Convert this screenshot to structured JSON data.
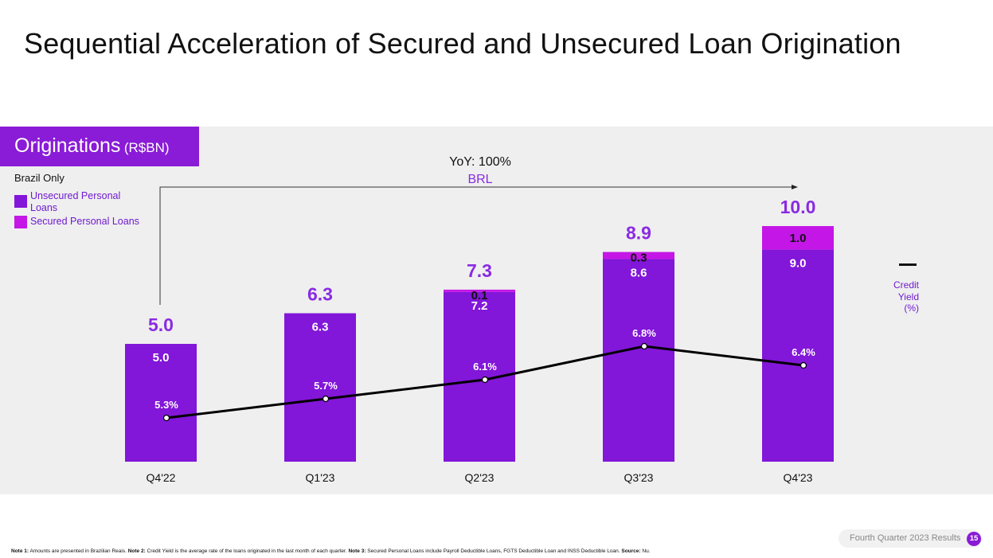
{
  "title": "Sequential Acceleration of Secured and Unsecured Loan Origination",
  "section": {
    "label": "Originations",
    "unit": "(R$BN)"
  },
  "legend": {
    "title": "Brazil Only",
    "items": [
      {
        "label": "Unsecured Personal Loans",
        "color": "#8216d9"
      },
      {
        "label": "Secured Personal Loans",
        "color": "#c416e6"
      }
    ]
  },
  "side_legend": {
    "lines": [
      "Credit",
      "Yield",
      "(%)"
    ]
  },
  "yoy": {
    "label": "YoY: 100%",
    "sub": "BRL"
  },
  "colors": {
    "unsecured": "#8216d9",
    "secured": "#c416e6",
    "total_label": "#8a2be2",
    "panel": "#efefef",
    "accent": "#8a1bd6"
  },
  "chart_data": {
    "type": "bar",
    "stacked": true,
    "categories": [
      "Q4'22",
      "Q1'23",
      "Q2'23",
      "Q3'23",
      "Q4'23"
    ],
    "series": [
      {
        "name": "Unsecured Personal Loans",
        "values": [
          5.0,
          6.3,
          7.2,
          8.6,
          9.0
        ],
        "labels": [
          "5.0",
          "6.3",
          "7.2",
          "8.6",
          "9.0"
        ]
      },
      {
        "name": "Secured Personal Loans",
        "values": [
          0,
          0,
          0.1,
          0.3,
          1.0
        ],
        "labels": [
          "",
          "",
          "0.1",
          "0.3",
          "1.0"
        ]
      }
    ],
    "totals": [
      5.0,
      6.3,
      7.3,
      8.9,
      10.0
    ],
    "total_labels": [
      "5.0",
      "6.3",
      "7.3",
      "8.9",
      "10.0"
    ],
    "line_series": {
      "name": "Credit Yield (%)",
      "values": [
        5.3,
        5.7,
        6.1,
        6.8,
        6.4
      ],
      "labels": [
        "5.3%",
        "5.7%",
        "6.1%",
        "6.8%",
        "6.4%"
      ]
    },
    "ylim": [
      0,
      10.0
    ]
  },
  "footer": {
    "badge": "Fourth Quarter 2023 Results",
    "page": "15"
  },
  "footnote": {
    "n1_label": "Note 1:",
    "n1_text": " Amounts are presented in Brazilian Reais. ",
    "n2_label": "Note 2:",
    "n2_text": " Credit Yield is the average rate of the loans originated in the last month of each quarter. ",
    "n3_label": "Note 3:",
    "n3_text": " Secured Personal Loans include Payroll Deductible Loans, FGTS Deductible Loan and INSS Deductible Loan. ",
    "src_label": "Source:",
    "src_text": " Nu."
  }
}
